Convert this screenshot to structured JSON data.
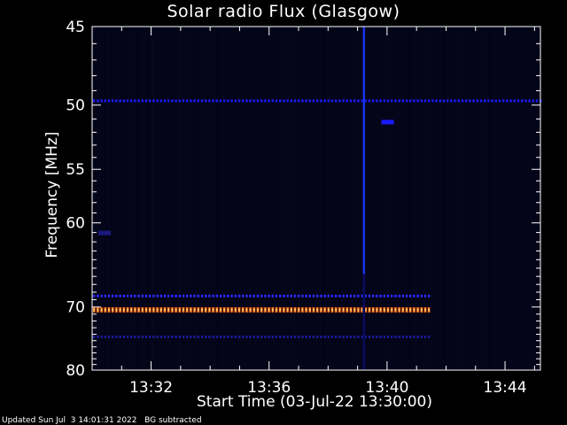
{
  "chart_data": {
    "type": "heatmap",
    "title": "Solar radio Flux (Glasgow)",
    "xlabel": "Start Time (03-Jul-22 13:30:00)",
    "ylabel": "Frequency [MHz]",
    "x_ticks": [
      {
        "label": "13:32",
        "minutes": 2
      },
      {
        "label": "13:36",
        "minutes": 6
      },
      {
        "label": "13:40",
        "minutes": 10
      },
      {
        "label": "13:44",
        "minutes": 14
      }
    ],
    "xlim_minutes": [
      0,
      15.2
    ],
    "y_ticks": [
      45,
      50,
      55,
      60,
      70,
      80
    ],
    "ylim_mhz": [
      45,
      80
    ],
    "y_scale": "reciprocal",
    "features": [
      {
        "type": "horizontal_band",
        "freq_mhz": 49.7,
        "t_start_min": 0,
        "t_end_min": 15.2,
        "color": "#1a1aff"
      },
      {
        "type": "horizontal_band",
        "freq_mhz": 68.5,
        "t_start_min": 0,
        "t_end_min": 11.4,
        "color": "#2a2aff"
      },
      {
        "type": "horizontal_band",
        "freq_mhz": 70.4,
        "t_start_min": 0,
        "t_end_min": 11.4,
        "color": "#ff6a1a"
      },
      {
        "type": "horizontal_band",
        "freq_mhz": 74.4,
        "t_start_min": 0,
        "t_end_min": 11.4,
        "color": "#1a1a99"
      },
      {
        "type": "vertical_line",
        "t_min": 9.2,
        "color": "#1a3aff"
      },
      {
        "type": "blob",
        "t_min": 0.3,
        "freq_mhz": 61.0,
        "color": "#1a1a80"
      },
      {
        "type": "blob",
        "t_min": 9.9,
        "freq_mhz": 51.2,
        "color": "#1a1aff"
      }
    ],
    "colors": {
      "background": "#000000",
      "plot_fill": "#05051a",
      "axis": "#ffffff"
    }
  },
  "footer": {
    "updated": "Updated Sun Jul  3 14:01:31 2022",
    "note": "BG subtracted"
  }
}
